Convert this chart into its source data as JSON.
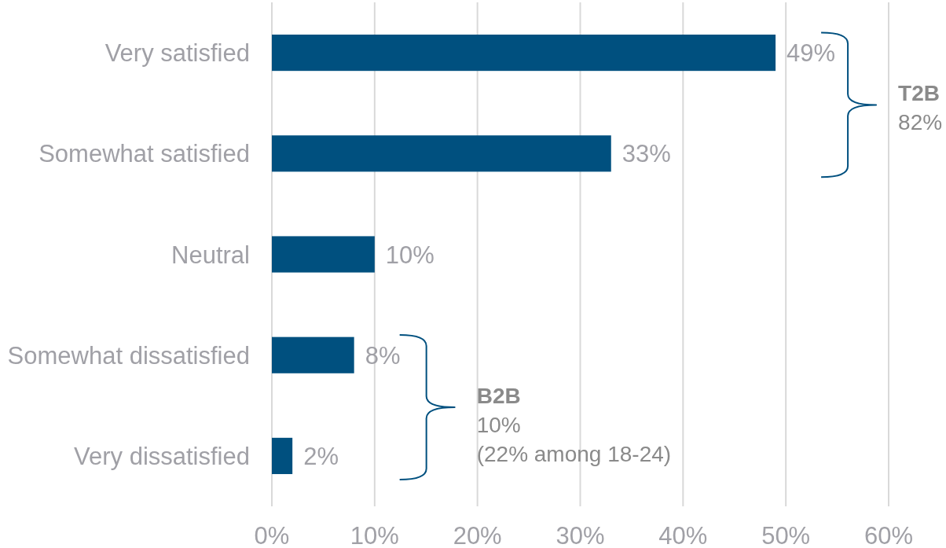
{
  "chart_data": {
    "type": "bar",
    "orientation": "horizontal",
    "categories": [
      "Very satisfied",
      "Somewhat satisfied",
      "Neutral",
      "Somewhat dissatisfied",
      "Very dissatisfied"
    ],
    "values": [
      49,
      33,
      10,
      8,
      2
    ],
    "color": "#00507f",
    "value_labels": [
      "49%",
      "33%",
      "10%",
      "8%",
      "2%"
    ],
    "xlim": [
      0,
      60
    ],
    "xticks": [
      {
        "value": 0,
        "label": "0%"
      },
      {
        "value": 10,
        "label": "10%"
      },
      {
        "value": 20,
        "label": "20%"
      },
      {
        "value": 30,
        "label": "30%"
      },
      {
        "value": 40,
        "label": "40%"
      },
      {
        "value": 50,
        "label": "50%"
      },
      {
        "value": 60,
        "label": "60%"
      }
    ],
    "grid": "x",
    "annotations": [
      "T2B\n82%",
      "B2B\n10%\n(22% among 18-24)"
    ]
  }
}
